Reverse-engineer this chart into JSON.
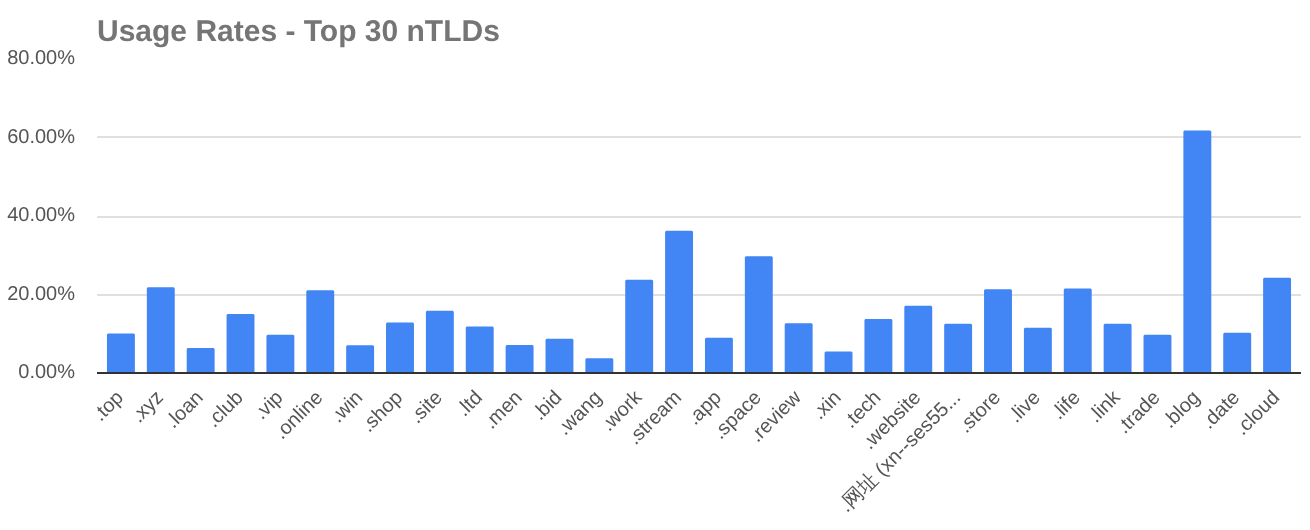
{
  "chart_data": {
    "type": "bar",
    "title": "Usage Rates - Top 30 nTLDs",
    "categories": [
      ".top",
      ".xyz",
      ".loan",
      ".club",
      ".vip",
      ".online",
      ".win",
      ".shop",
      ".site",
      ".ltd",
      ".men",
      ".bid",
      ".wang",
      ".work",
      ".stream",
      ".app",
      ".space",
      ".review",
      ".xin",
      ".tech",
      ".website",
      ".网址 (xn--ses55...",
      ".store",
      ".live",
      ".life",
      ".link",
      ".trade",
      ".blog",
      ".date",
      ".cloud"
    ],
    "values": [
      9.8,
      21.6,
      6.1,
      14.8,
      9.5,
      20.8,
      6.8,
      12.6,
      15.6,
      11.6,
      6.9,
      8.5,
      3.5,
      23.5,
      36.0,
      8.7,
      29.5,
      12.4,
      5.2,
      13.5,
      16.9,
      12.3,
      21.1,
      11.3,
      21.3,
      12.3,
      9.5,
      61.5,
      10.0,
      24.0
    ],
    "color": "#4285f4",
    "ylim": [
      0,
      80
    ],
    "yticks": [
      {
        "value": 0,
        "label": "0.00%"
      },
      {
        "value": 20,
        "label": "20.00%"
      },
      {
        "value": 40,
        "label": "40.00%"
      },
      {
        "value": 60,
        "label": "60.00%"
      },
      {
        "value": 80,
        "label": "80.00%"
      }
    ],
    "grid": "y"
  }
}
